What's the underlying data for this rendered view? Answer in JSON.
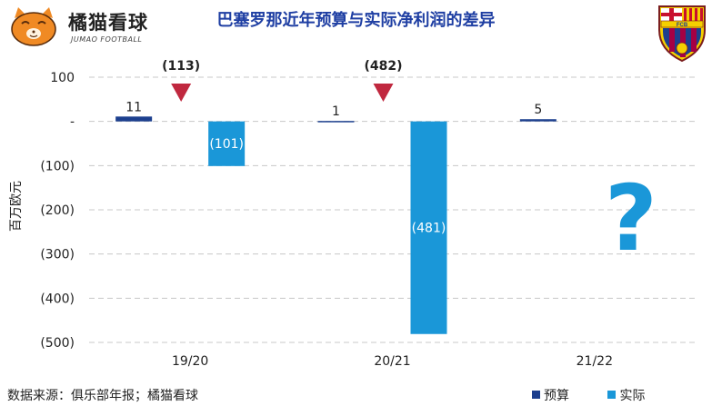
{
  "brand": {
    "name": "橘猫看球",
    "subtitle": "JUMAO FOOTBALL"
  },
  "crest": {
    "name": "fc-barcelona-crest",
    "letters": "FCB"
  },
  "source_note": "数据来源：俱乐部年报；橘猫看球",
  "colors": {
    "budget": "#1c3f8e",
    "actual": "#1a97d8",
    "marker": "#c0283f",
    "title": "#1f3fa3"
  },
  "chart_data": {
    "type": "bar",
    "title": "巴塞罗那近年预算与实际净利润的差异",
    "ylabel": "百万欧元",
    "ylim": [
      -500,
      100
    ],
    "ytick_values": [
      100,
      0,
      -100,
      -200,
      -300,
      -400,
      -500
    ],
    "ytick_labels": [
      "100",
      "-",
      "(100)",
      "(200)",
      "(300)",
      "(400)",
      "(500)"
    ],
    "categories": [
      "19/20",
      "20/21",
      "21/22"
    ],
    "series": [
      {
        "name": "预算",
        "values": [
          11,
          1,
          5
        ],
        "labels": [
          "11",
          "1",
          "5"
        ]
      },
      {
        "name": "实际",
        "values": [
          -101,
          -481,
          null
        ],
        "labels": [
          "(101)",
          "(481)",
          ""
        ]
      }
    ],
    "gaps": [
      {
        "category": "19/20",
        "value": -113,
        "label": "(113)"
      },
      {
        "category": "20/21",
        "value": -482,
        "label": "(482)"
      }
    ],
    "annotations": [
      {
        "category": "21/22",
        "text": "?"
      }
    ],
    "grid": true,
    "legend_position": "bottom-right"
  }
}
